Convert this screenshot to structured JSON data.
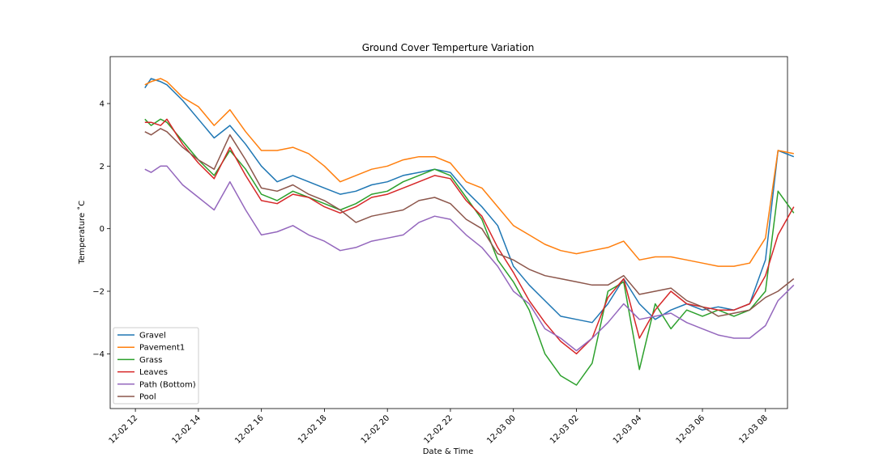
{
  "chart_data": {
    "type": "line",
    "title": "Ground Cover Temperture Variation",
    "xlabel": "Date & Time",
    "ylabel": "Temperature ˚C",
    "x_ticks": [
      "12-02 12",
      "12-02 14",
      "12-02 16",
      "12-02 18",
      "12-02 20",
      "12-02 22",
      "12-03 00",
      "12-03 02",
      "12-03 04",
      "12-03 06",
      "12-03 08"
    ],
    "y_ticks": [
      "4",
      "2",
      "0",
      "−2",
      "−4"
    ],
    "x_range_hours": [
      11.2,
      32.7
    ],
    "ylim": [
      -5.75,
      5.5
    ],
    "grid": false,
    "legend_position": "lower left",
    "x": [
      12.3,
      12.5,
      12.8,
      13.0,
      13.5,
      14.0,
      14.5,
      15.0,
      15.5,
      16.0,
      16.5,
      17.0,
      17.5,
      18.0,
      18.5,
      19.0,
      19.5,
      20.0,
      20.5,
      21.0,
      21.5,
      22.0,
      22.5,
      23.0,
      23.5,
      24.0,
      24.5,
      25.0,
      25.5,
      26.0,
      26.5,
      27.0,
      27.5,
      28.0,
      28.5,
      29.0,
      29.5,
      30.0,
      30.5,
      31.0,
      31.5,
      32.0,
      32.4,
      32.9
    ],
    "series": [
      {
        "name": "Gravel",
        "color": "#1f77b4",
        "values": [
          4.5,
          4.8,
          4.7,
          4.6,
          4.1,
          3.5,
          2.9,
          3.3,
          2.7,
          2.0,
          1.5,
          1.7,
          1.5,
          1.3,
          1.1,
          1.2,
          1.4,
          1.5,
          1.7,
          1.8,
          1.9,
          1.8,
          1.2,
          0.7,
          0.1,
          -1.2,
          -1.8,
          -2.3,
          -2.8,
          -2.9,
          -3.0,
          -2.4,
          -1.6,
          -2.4,
          -2.9,
          -2.6,
          -2.4,
          -2.6,
          -2.5,
          -2.6,
          -2.4,
          -1.0,
          2.5,
          2.3
        ]
      },
      {
        "name": "Pavement1",
        "color": "#ff7f0e",
        "values": [
          4.6,
          4.7,
          4.8,
          4.7,
          4.2,
          3.9,
          3.3,
          3.8,
          3.1,
          2.5,
          2.5,
          2.6,
          2.4,
          2.0,
          1.5,
          1.7,
          1.9,
          2.0,
          2.2,
          2.3,
          2.3,
          2.1,
          1.5,
          1.3,
          0.7,
          0.1,
          -0.2,
          -0.5,
          -0.7,
          -0.8,
          -0.7,
          -0.6,
          -0.4,
          -1.0,
          -0.9,
          -0.9,
          -1.0,
          -1.1,
          -1.2,
          -1.2,
          -1.1,
          -0.3,
          2.5,
          2.4
        ]
      },
      {
        "name": "Grass",
        "color": "#2ca02c",
        "values": [
          3.5,
          3.3,
          3.5,
          3.4,
          2.8,
          2.2,
          1.7,
          2.5,
          1.9,
          1.1,
          0.9,
          1.2,
          1.0,
          0.8,
          0.6,
          0.8,
          1.1,
          1.2,
          1.5,
          1.7,
          1.9,
          1.7,
          1.0,
          0.3,
          -1.0,
          -1.7,
          -2.6,
          -4.0,
          -4.7,
          -5.0,
          -4.3,
          -2.0,
          -1.7,
          -4.5,
          -2.4,
          -3.2,
          -2.6,
          -2.8,
          -2.6,
          -2.8,
          -2.6,
          -2.0,
          1.2,
          0.5
        ]
      },
      {
        "name": "Leaves",
        "color": "#d62728",
        "values": [
          3.4,
          3.4,
          3.3,
          3.5,
          2.7,
          2.1,
          1.6,
          2.6,
          1.7,
          0.9,
          0.8,
          1.1,
          1.0,
          0.7,
          0.5,
          0.7,
          1.0,
          1.1,
          1.3,
          1.5,
          1.7,
          1.6,
          0.9,
          0.4,
          -0.6,
          -1.4,
          -2.3,
          -3.0,
          -3.6,
          -4.0,
          -3.5,
          -2.2,
          -1.6,
          -3.5,
          -2.6,
          -2.0,
          -2.4,
          -2.5,
          -2.6,
          -2.6,
          -2.4,
          -1.5,
          -0.2,
          0.7
        ]
      },
      {
        "name": "Path (Bottom)",
        "color": "#9467bd",
        "values": [
          1.9,
          1.8,
          2.0,
          2.0,
          1.4,
          1.0,
          0.6,
          1.5,
          0.6,
          -0.2,
          -0.1,
          0.1,
          -0.2,
          -0.4,
          -0.7,
          -0.6,
          -0.4,
          -0.3,
          -0.2,
          0.2,
          0.4,
          0.3,
          -0.2,
          -0.6,
          -1.2,
          -2.0,
          -2.4,
          -3.2,
          -3.5,
          -3.9,
          -3.5,
          -3.0,
          -2.4,
          -2.9,
          -2.8,
          -2.7,
          -3.0,
          -3.2,
          -3.4,
          -3.5,
          -3.5,
          -3.1,
          -2.3,
          -1.8
        ]
      },
      {
        "name": "Pool",
        "color": "#8c564b",
        "values": [
          3.1,
          3.0,
          3.2,
          3.1,
          2.6,
          2.2,
          1.9,
          3.0,
          2.2,
          1.3,
          1.2,
          1.4,
          1.1,
          0.9,
          0.6,
          0.2,
          0.4,
          0.5,
          0.6,
          0.9,
          1.0,
          0.8,
          0.3,
          0.0,
          -0.8,
          -1.0,
          -1.3,
          -1.5,
          -1.6,
          -1.7,
          -1.8,
          -1.8,
          -1.5,
          -2.1,
          -2.0,
          -1.9,
          -2.3,
          -2.5,
          -2.8,
          -2.7,
          -2.6,
          -2.2,
          -2.0,
          -1.6
        ]
      }
    ]
  }
}
